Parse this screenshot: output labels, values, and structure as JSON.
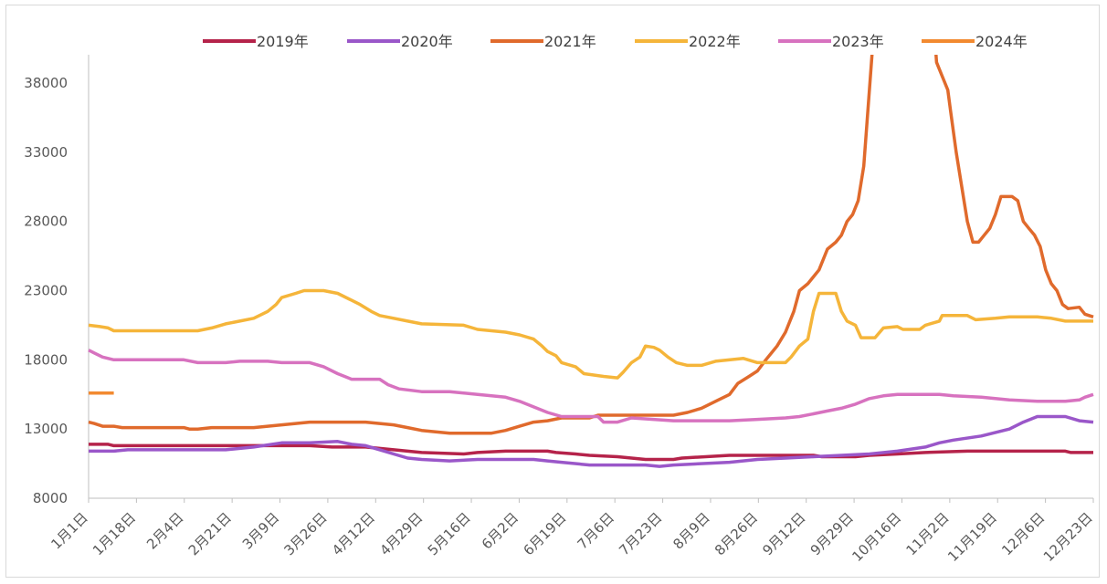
{
  "chart_data": {
    "type": "line",
    "title": "",
    "xlabel": "",
    "ylabel": "",
    "ylim": [
      8000,
      40000
    ],
    "y_ticks": [
      "8000",
      "13000",
      "18000",
      "23000",
      "28000",
      "33000",
      "38000"
    ],
    "x_ticks": [
      "1月1日",
      "1月18日",
      "2月4日",
      "2月21日",
      "3月9日",
      "3月26日",
      "4月12日",
      "4月29日",
      "5月16日",
      "6月2日",
      "6月19日",
      "7月6日",
      "7月23日",
      "8月9日",
      "8月26日",
      "9月12日",
      "9月29日",
      "10月16日",
      "11月2日",
      "11月19日",
      "12月6日",
      "12月23日"
    ],
    "grid": false,
    "legend_position": "top",
    "series": [
      {
        "name": "2019年",
        "color": "#b5234a",
        "points": [
          [
            1,
            11900
          ],
          [
            8,
            11900
          ],
          [
            10,
            11800
          ],
          [
            30,
            11800
          ],
          [
            60,
            11800
          ],
          [
            80,
            11800
          ],
          [
            88,
            11700
          ],
          [
            100,
            11700
          ],
          [
            105,
            11600
          ],
          [
            110,
            11500
          ],
          [
            115,
            11400
          ],
          [
            120,
            11300
          ],
          [
            135,
            11200
          ],
          [
            140,
            11300
          ],
          [
            150,
            11400
          ],
          [
            165,
            11400
          ],
          [
            168,
            11300
          ],
          [
            175,
            11200
          ],
          [
            180,
            11100
          ],
          [
            190,
            11000
          ],
          [
            200,
            10800
          ],
          [
            210,
            10800
          ],
          [
            213,
            10900
          ],
          [
            230,
            11100
          ],
          [
            250,
            11100
          ],
          [
            260,
            11100
          ],
          [
            263,
            11000
          ],
          [
            275,
            11000
          ],
          [
            280,
            11100
          ],
          [
            290,
            11200
          ],
          [
            300,
            11300
          ],
          [
            315,
            11400
          ],
          [
            340,
            11400
          ],
          [
            350,
            11400
          ],
          [
            352,
            11300
          ],
          [
            360,
            11300
          ]
        ]
      },
      {
        "name": "2020年",
        "color": "#9a57c9",
        "points": [
          [
            1,
            11400
          ],
          [
            10,
            11400
          ],
          [
            15,
            11500
          ],
          [
            40,
            11500
          ],
          [
            50,
            11500
          ],
          [
            60,
            11700
          ],
          [
            70,
            12000
          ],
          [
            80,
            12000
          ],
          [
            90,
            12100
          ],
          [
            95,
            11900
          ],
          [
            100,
            11800
          ],
          [
            105,
            11500
          ],
          [
            110,
            11200
          ],
          [
            115,
            10900
          ],
          [
            120,
            10800
          ],
          [
            130,
            10700
          ],
          [
            140,
            10800
          ],
          [
            160,
            10800
          ],
          [
            165,
            10700
          ],
          [
            170,
            10600
          ],
          [
            180,
            10400
          ],
          [
            200,
            10400
          ],
          [
            205,
            10300
          ],
          [
            210,
            10400
          ],
          [
            230,
            10600
          ],
          [
            240,
            10800
          ],
          [
            250,
            10900
          ],
          [
            260,
            11000
          ],
          [
            280,
            11200
          ],
          [
            290,
            11400
          ],
          [
            300,
            11700
          ],
          [
            305,
            12000
          ],
          [
            310,
            12200
          ],
          [
            320,
            12500
          ],
          [
            330,
            13000
          ],
          [
            335,
            13500
          ],
          [
            340,
            13900
          ],
          [
            350,
            13900
          ],
          [
            355,
            13600
          ],
          [
            360,
            13500
          ]
        ]
      },
      {
        "name": "2021年",
        "color": "#e06a2c",
        "points": [
          [
            1,
            13500
          ],
          [
            3,
            13400
          ],
          [
            6,
            13200
          ],
          [
            10,
            13200
          ],
          [
            13,
            13100
          ],
          [
            30,
            13100
          ],
          [
            35,
            13100
          ],
          [
            37,
            13000
          ],
          [
            40,
            13000
          ],
          [
            45,
            13100
          ],
          [
            60,
            13100
          ],
          [
            65,
            13200
          ],
          [
            70,
            13300
          ],
          [
            75,
            13400
          ],
          [
            80,
            13500
          ],
          [
            100,
            13500
          ],
          [
            105,
            13400
          ],
          [
            110,
            13300
          ],
          [
            115,
            13100
          ],
          [
            120,
            12900
          ],
          [
            125,
            12800
          ],
          [
            130,
            12700
          ],
          [
            145,
            12700
          ],
          [
            150,
            12900
          ],
          [
            155,
            13200
          ],
          [
            160,
            13500
          ],
          [
            165,
            13600
          ],
          [
            170,
            13800
          ],
          [
            180,
            13800
          ],
          [
            183,
            14000
          ],
          [
            190,
            14000
          ],
          [
            200,
            14000
          ],
          [
            210,
            14000
          ],
          [
            215,
            14200
          ],
          [
            220,
            14500
          ],
          [
            225,
            15000
          ],
          [
            230,
            15500
          ],
          [
            233,
            16300
          ],
          [
            237,
            16800
          ],
          [
            240,
            17200
          ],
          [
            243,
            18000
          ],
          [
            247,
            19000
          ],
          [
            250,
            20000
          ],
          [
            253,
            21500
          ],
          [
            255,
            23000
          ],
          [
            258,
            23500
          ],
          [
            262,
            24500
          ],
          [
            265,
            26000
          ],
          [
            268,
            26500
          ],
          [
            270,
            27000
          ],
          [
            272,
            28000
          ],
          [
            274,
            28500
          ],
          [
            276,
            29500
          ],
          [
            278,
            32000
          ],
          [
            281,
            40200
          ],
          [
            282,
            45000
          ],
          [
            302,
            45000
          ],
          [
            304,
            39500
          ],
          [
            306,
            38500
          ],
          [
            308,
            37500
          ],
          [
            309,
            36000
          ],
          [
            311,
            33000
          ],
          [
            313,
            30500
          ],
          [
            315,
            28000
          ],
          [
            317,
            26500
          ],
          [
            319,
            26500
          ],
          [
            321,
            27000
          ],
          [
            323,
            27500
          ],
          [
            325,
            28500
          ],
          [
            327,
            29800
          ],
          [
            331,
            29800
          ],
          [
            333,
            29500
          ],
          [
            335,
            28000
          ],
          [
            337,
            27500
          ],
          [
            339,
            27000
          ],
          [
            341,
            26200
          ],
          [
            343,
            24500
          ],
          [
            345,
            23500
          ],
          [
            347,
            23000
          ],
          [
            349,
            22000
          ],
          [
            351,
            21700
          ],
          [
            355,
            21800
          ],
          [
            357,
            21300
          ],
          [
            360,
            21100
          ]
        ]
      },
      {
        "name": "2022年",
        "color": "#f5b53a",
        "points": [
          [
            1,
            20500
          ],
          [
            5,
            20400
          ],
          [
            8,
            20300
          ],
          [
            10,
            20100
          ],
          [
            40,
            20100
          ],
          [
            45,
            20300
          ],
          [
            50,
            20600
          ],
          [
            55,
            20800
          ],
          [
            60,
            21000
          ],
          [
            63,
            21300
          ],
          [
            65,
            21500
          ],
          [
            68,
            22000
          ],
          [
            70,
            22500
          ],
          [
            75,
            22800
          ],
          [
            78,
            23000
          ],
          [
            85,
            23000
          ],
          [
            90,
            22800
          ],
          [
            95,
            22300
          ],
          [
            98,
            22000
          ],
          [
            102,
            21500
          ],
          [
            105,
            21200
          ],
          [
            110,
            21000
          ],
          [
            115,
            20800
          ],
          [
            120,
            20600
          ],
          [
            135,
            20500
          ],
          [
            140,
            20200
          ],
          [
            150,
            20000
          ],
          [
            155,
            19800
          ],
          [
            160,
            19500
          ],
          [
            163,
            19000
          ],
          [
            165,
            18600
          ],
          [
            168,
            18300
          ],
          [
            170,
            17800
          ],
          [
            175,
            17500
          ],
          [
            178,
            17000
          ],
          [
            185,
            16800
          ],
          [
            190,
            16700
          ],
          [
            192,
            17100
          ],
          [
            195,
            17800
          ],
          [
            198,
            18200
          ],
          [
            200,
            19000
          ],
          [
            203,
            18900
          ],
          [
            205,
            18700
          ],
          [
            208,
            18200
          ],
          [
            211,
            17800
          ],
          [
            215,
            17600
          ],
          [
            220,
            17600
          ],
          [
            225,
            17900
          ],
          [
            235,
            18100
          ],
          [
            240,
            17800
          ],
          [
            250,
            17800
          ],
          [
            252,
            18200
          ],
          [
            255,
            19000
          ],
          [
            258,
            19500
          ],
          [
            260,
            21500
          ],
          [
            262,
            22800
          ],
          [
            268,
            22800
          ],
          [
            270,
            21500
          ],
          [
            272,
            20800
          ],
          [
            275,
            20500
          ],
          [
            277,
            19600
          ],
          [
            282,
            19600
          ],
          [
            285,
            20300
          ],
          [
            290,
            20400
          ],
          [
            292,
            20200
          ],
          [
            298,
            20200
          ],
          [
            300,
            20500
          ],
          [
            305,
            20800
          ],
          [
            306,
            21200
          ],
          [
            315,
            21200
          ],
          [
            318,
            20900
          ],
          [
            325,
            21000
          ],
          [
            330,
            21100
          ],
          [
            340,
            21100
          ],
          [
            345,
            21000
          ],
          [
            350,
            20800
          ],
          [
            355,
            20800
          ],
          [
            360,
            20800
          ]
        ]
      },
      {
        "name": "2023年",
        "color": "#d772bf",
        "points": [
          [
            1,
            18700
          ],
          [
            3,
            18500
          ],
          [
            6,
            18200
          ],
          [
            10,
            18000
          ],
          [
            35,
            18000
          ],
          [
            40,
            17800
          ],
          [
            50,
            17800
          ],
          [
            55,
            17900
          ],
          [
            65,
            17900
          ],
          [
            70,
            17800
          ],
          [
            80,
            17800
          ],
          [
            85,
            17500
          ],
          [
            90,
            17000
          ],
          [
            95,
            16600
          ],
          [
            105,
            16600
          ],
          [
            108,
            16200
          ],
          [
            112,
            15900
          ],
          [
            120,
            15700
          ],
          [
            130,
            15700
          ],
          [
            140,
            15500
          ],
          [
            150,
            15300
          ],
          [
            155,
            15000
          ],
          [
            160,
            14600
          ],
          [
            165,
            14200
          ],
          [
            170,
            13900
          ],
          [
            183,
            13900
          ],
          [
            185,
            13500
          ],
          [
            190,
            13500
          ],
          [
            195,
            13800
          ],
          [
            210,
            13600
          ],
          [
            230,
            13600
          ],
          [
            240,
            13700
          ],
          [
            250,
            13800
          ],
          [
            255,
            13900
          ],
          [
            260,
            14100
          ],
          [
            265,
            14300
          ],
          [
            270,
            14500
          ],
          [
            275,
            14800
          ],
          [
            280,
            15200
          ],
          [
            285,
            15400
          ],
          [
            290,
            15500
          ],
          [
            305,
            15500
          ],
          [
            310,
            15400
          ],
          [
            320,
            15300
          ],
          [
            330,
            15100
          ],
          [
            340,
            15000
          ],
          [
            350,
            15000
          ],
          [
            355,
            15100
          ],
          [
            357,
            15300
          ],
          [
            360,
            15500
          ]
        ]
      },
      {
        "name": "2024年",
        "color": "#f28a30",
        "points": [
          [
            1,
            15600
          ],
          [
            10,
            15600
          ]
        ]
      }
    ]
  }
}
